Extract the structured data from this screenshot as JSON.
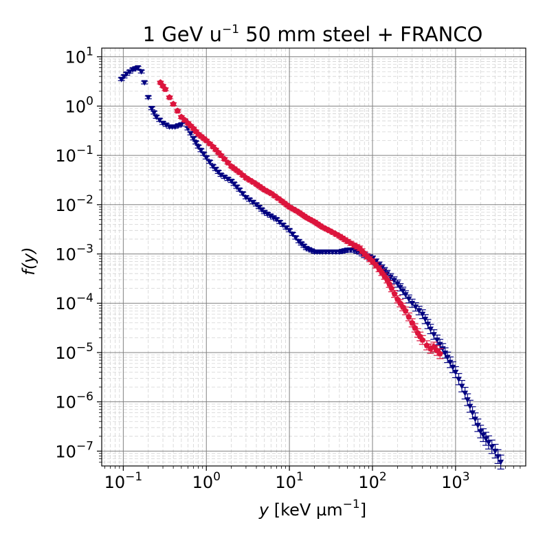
{
  "chart_data": {
    "type": "scatter",
    "title": "1 GeV u",
    "title_superscript": "−1",
    "title_suffix": " 50 mm steel + FRANCO",
    "xlabel": "y",
    "xlabel_unit": " [keV µm",
    "xlabel_unit_exp": "−1",
    "xlabel_unit_close": "]",
    "ylabel": "f(y)",
    "x_scale": "log",
    "y_scale": "log",
    "xlim": [
      0.055,
      7000
    ],
    "ylim": [
      5e-08,
      15
    ],
    "grid": true,
    "legend": "none",
    "x_ticks": [
      {
        "value": 0.1,
        "base": "10",
        "exp": "−1"
      },
      {
        "value": 1,
        "base": "10",
        "exp": "0"
      },
      {
        "value": 10,
        "base": "10",
        "exp": "1"
      },
      {
        "value": 100,
        "base": "10",
        "exp": "2"
      },
      {
        "value": 1000,
        "base": "10",
        "exp": "3"
      }
    ],
    "y_ticks": [
      {
        "value": 10,
        "base": "10",
        "exp": "1"
      },
      {
        "value": 1,
        "base": "10",
        "exp": "0"
      },
      {
        "value": 0.1,
        "base": "10",
        "exp": "−1"
      },
      {
        "value": 0.01,
        "base": "10",
        "exp": "−2"
      },
      {
        "value": 0.001,
        "base": "10",
        "exp": "−3"
      },
      {
        "value": 0.0001,
        "base": "10",
        "exp": "−4"
      },
      {
        "value": 1e-05,
        "base": "10",
        "exp": "−5"
      },
      {
        "value": 1e-06,
        "base": "10",
        "exp": "−6"
      },
      {
        "value": 1e-07,
        "base": "10",
        "exp": "−7"
      }
    ],
    "series": [
      {
        "color": "#000080",
        "marker": "triangle-down",
        "x": [
          0.095,
          0.11,
          0.13,
          0.15,
          0.165,
          0.18,
          0.2,
          0.22,
          0.25,
          0.3,
          0.36,
          0.42,
          0.5,
          0.55,
          0.6,
          0.7,
          0.8,
          1.0,
          1.2,
          1.5,
          2.0,
          2.5,
          3.0,
          4.0,
          5.0,
          7.0,
          10,
          13,
          16,
          20,
          25,
          30,
          40,
          50,
          60,
          70,
          80,
          100,
          120,
          150,
          200,
          250,
          300,
          400,
          500,
          600,
          700,
          800,
          1000,
          1300,
          1600,
          2000,
          2500,
          3000,
          3500
        ],
        "y": [
          3.5,
          4.5,
          5.5,
          6.0,
          5.0,
          3.0,
          1.5,
          0.9,
          0.6,
          0.45,
          0.38,
          0.38,
          0.42,
          0.5,
          0.35,
          0.22,
          0.15,
          0.09,
          0.06,
          0.04,
          0.03,
          0.02,
          0.014,
          0.01,
          0.007,
          0.005,
          0.003,
          0.0018,
          0.0013,
          0.0011,
          0.0011,
          0.0011,
          0.0011,
          0.0012,
          0.0012,
          0.0011,
          0.00095,
          0.0008,
          0.0006,
          0.0004,
          0.00025,
          0.00015,
          0.0001,
          6e-05,
          3e-05,
          1.8e-05,
          1.2e-05,
          8e-06,
          4e-06,
          1.5e-06,
          6e-07,
          2.5e-07,
          1.5e-07,
          1e-07,
          6e-08
        ]
      },
      {
        "color": "#dc143c",
        "marker": "pentagon",
        "x": [
          0.28,
          0.32,
          0.36,
          0.4,
          0.45,
          0.5,
          0.6,
          0.7,
          0.8,
          1.0,
          1.2,
          1.5,
          2.0,
          2.5,
          3.0,
          4.0,
          5.0,
          6.0,
          8.0,
          10,
          13,
          16,
          20,
          25,
          30,
          40,
          50,
          60,
          70,
          80,
          100,
          120,
          150,
          170,
          200,
          250,
          300,
          350,
          400,
          450,
          500,
          550,
          600,
          650
        ],
        "y": [
          3.0,
          2.2,
          1.5,
          1.1,
          0.8,
          0.6,
          0.45,
          0.35,
          0.27,
          0.2,
          0.15,
          0.1,
          0.06,
          0.045,
          0.035,
          0.026,
          0.02,
          0.017,
          0.012,
          0.009,
          0.007,
          0.0055,
          0.0045,
          0.0035,
          0.003,
          0.0023,
          0.0018,
          0.0015,
          0.0013,
          0.001,
          0.0007,
          0.0005,
          0.0003,
          0.0002,
          0.00012,
          7e-05,
          4e-05,
          2.5e-05,
          1.8e-05,
          1.4e-05,
          1.2e-05,
          1.3e-05,
          1.1e-05,
          9.5e-06
        ]
      }
    ]
  }
}
